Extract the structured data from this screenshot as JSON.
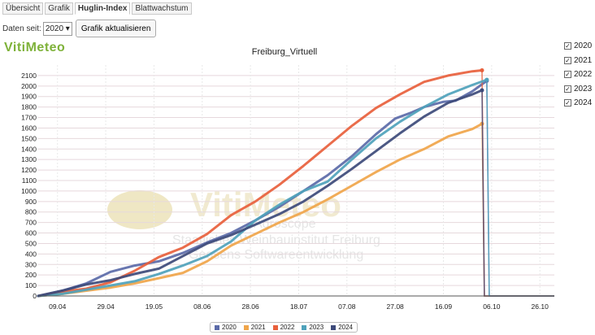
{
  "tabs": [
    {
      "label": "Übersicht",
      "active": false
    },
    {
      "label": "Grafik",
      "active": false
    },
    {
      "label": "Huglin-Index",
      "active": true
    },
    {
      "label": "Blattwachstum",
      "active": false
    }
  ],
  "controls": {
    "since_label": "Daten seit:",
    "since_value": "2020",
    "refresh_label": "Grafik aktualisieren"
  },
  "logo": "VitiMeteo",
  "watermark": {
    "brand": "VitiMeteo",
    "line1": "Agroscope",
    "line2": "Staatliches Weinbauinstitut Freiburg",
    "line3": "Geosens Softwareentwicklung"
  },
  "colors": {
    "2020": "#5b6aa8",
    "2021": "#f0a54a",
    "2022": "#e8603c",
    "2023": "#4fa2bb",
    "2024": "#3d4a7a"
  },
  "chart_data": {
    "type": "line",
    "title": "Freiburg_Virtuell",
    "xlabel": "",
    "ylabel": "",
    "ylim": [
      0,
      2200
    ],
    "yticks": [
      0,
      100,
      200,
      300,
      400,
      500,
      600,
      700,
      800,
      900,
      1000,
      1100,
      1200,
      1300,
      1400,
      1500,
      1600,
      1700,
      1800,
      1900,
      2000,
      2100
    ],
    "x_tick_labels": [
      "09.04",
      "29.04",
      "19.05",
      "08.06",
      "28.06",
      "18.07",
      "07.08",
      "27.08",
      "16.09",
      "06.10",
      "26.10"
    ],
    "x_unit": "day of season (0 = 01.04)",
    "x_ticks_days": [
      8,
      28,
      48,
      68,
      88,
      108,
      128,
      148,
      168,
      188,
      208
    ],
    "xlim": [
      0,
      214
    ],
    "grid": true,
    "legend_position": "bottom",
    "series": [
      {
        "name": "2020",
        "points": [
          [
            0,
            0
          ],
          [
            10,
            50
          ],
          [
            20,
            120
          ],
          [
            30,
            230
          ],
          [
            40,
            290
          ],
          [
            50,
            330
          ],
          [
            60,
            410
          ],
          [
            70,
            510
          ],
          [
            80,
            600
          ],
          [
            90,
            720
          ],
          [
            100,
            850
          ],
          [
            110,
            1000
          ],
          [
            120,
            1150
          ],
          [
            130,
            1330
          ],
          [
            140,
            1540
          ],
          [
            148,
            1690
          ],
          [
            155,
            1750
          ],
          [
            160,
            1800
          ],
          [
            168,
            1850
          ],
          [
            173,
            1860
          ],
          [
            180,
            1950
          ],
          [
            186,
            2050
          ]
        ]
      },
      {
        "name": "2021",
        "points": [
          [
            0,
            0
          ],
          [
            10,
            20
          ],
          [
            20,
            50
          ],
          [
            30,
            80
          ],
          [
            40,
            120
          ],
          [
            50,
            170
          ],
          [
            60,
            220
          ],
          [
            70,
            330
          ],
          [
            80,
            480
          ],
          [
            90,
            590
          ],
          [
            100,
            700
          ],
          [
            110,
            800
          ],
          [
            120,
            920
          ],
          [
            130,
            1050
          ],
          [
            140,
            1180
          ],
          [
            150,
            1300
          ],
          [
            160,
            1400
          ],
          [
            170,
            1520
          ],
          [
            180,
            1590
          ],
          [
            184,
            1640
          ]
        ]
      },
      {
        "name": "2022",
        "points": [
          [
            0,
            0
          ],
          [
            10,
            40
          ],
          [
            20,
            70
          ],
          [
            30,
            130
          ],
          [
            40,
            240
          ],
          [
            50,
            370
          ],
          [
            60,
            460
          ],
          [
            70,
            590
          ],
          [
            80,
            770
          ],
          [
            90,
            900
          ],
          [
            100,
            1060
          ],
          [
            110,
            1240
          ],
          [
            120,
            1430
          ],
          [
            130,
            1620
          ],
          [
            140,
            1790
          ],
          [
            150,
            1920
          ],
          [
            160,
            2040
          ],
          [
            170,
            2100
          ],
          [
            180,
            2140
          ],
          [
            184,
            2150
          ]
        ]
      },
      {
        "name": "2023",
        "points": [
          [
            0,
            0
          ],
          [
            10,
            20
          ],
          [
            20,
            60
          ],
          [
            30,
            100
          ],
          [
            40,
            140
          ],
          [
            50,
            210
          ],
          [
            60,
            290
          ],
          [
            70,
            380
          ],
          [
            80,
            520
          ],
          [
            90,
            720
          ],
          [
            100,
            870
          ],
          [
            110,
            1000
          ],
          [
            120,
            1090
          ],
          [
            130,
            1300
          ],
          [
            140,
            1500
          ],
          [
            150,
            1660
          ],
          [
            160,
            1800
          ],
          [
            170,
            1920
          ],
          [
            180,
            2010
          ],
          [
            186,
            2060
          ]
        ]
      },
      {
        "name": "2024",
        "points": [
          [
            0,
            0
          ],
          [
            10,
            50
          ],
          [
            20,
            110
          ],
          [
            30,
            150
          ],
          [
            40,
            210
          ],
          [
            50,
            260
          ],
          [
            60,
            380
          ],
          [
            70,
            500
          ],
          [
            80,
            580
          ],
          [
            90,
            680
          ],
          [
            100,
            780
          ],
          [
            110,
            900
          ],
          [
            120,
            1050
          ],
          [
            130,
            1210
          ],
          [
            140,
            1380
          ],
          [
            150,
            1550
          ],
          [
            160,
            1710
          ],
          [
            170,
            1840
          ],
          [
            180,
            1920
          ],
          [
            184,
            1960
          ]
        ]
      }
    ]
  }
}
